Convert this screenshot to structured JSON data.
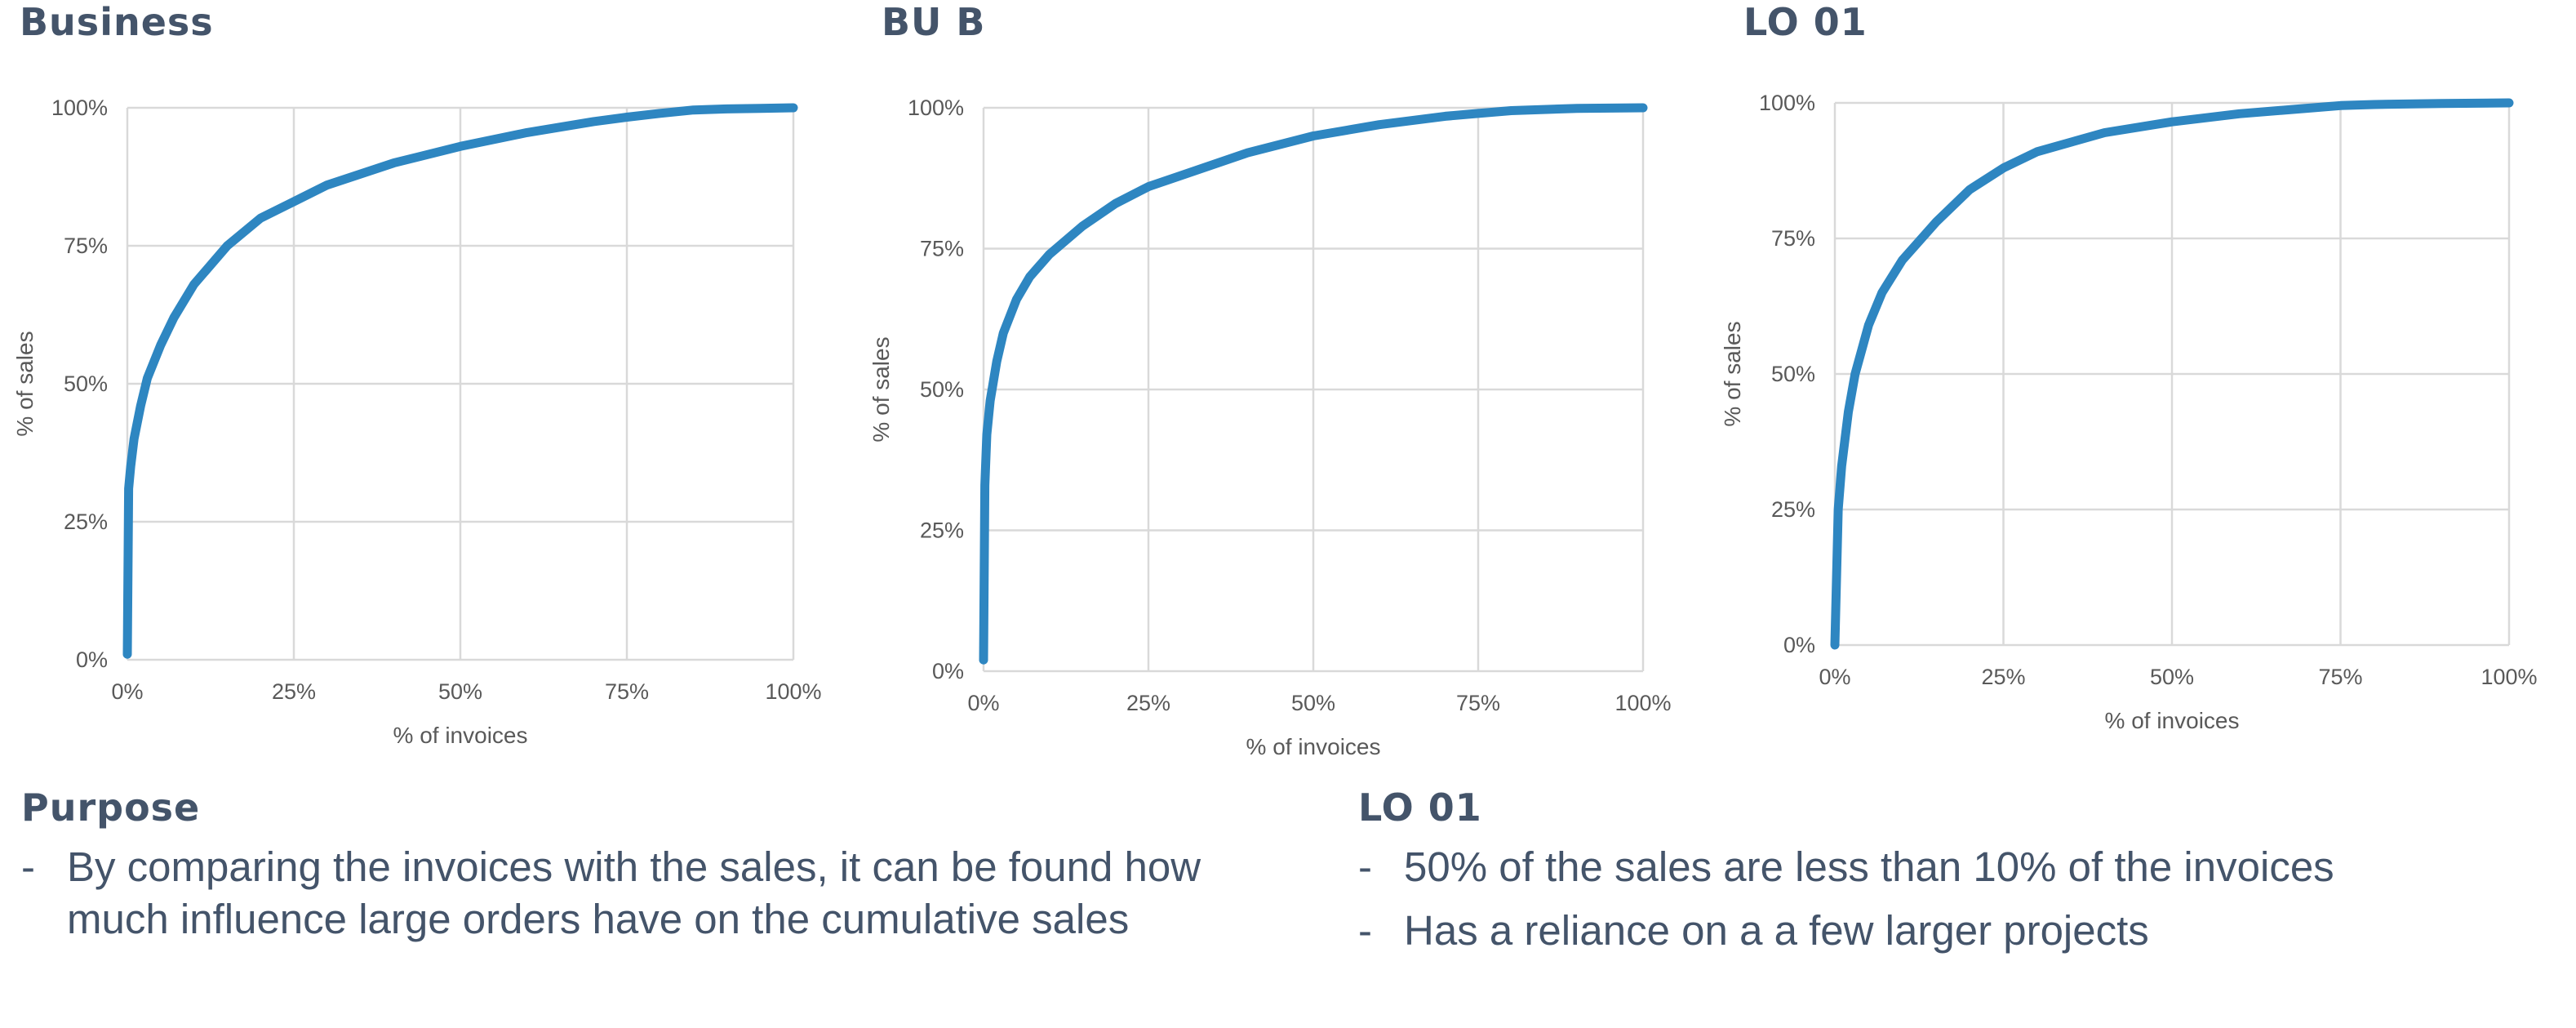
{
  "chart_data": [
    {
      "type": "line",
      "title": "Business",
      "xlabel": "% of invoices",
      "ylabel": "% of sales",
      "xlim": [
        0,
        100
      ],
      "ylim": [
        0,
        100
      ],
      "x_ticks": [
        "0%",
        "25%",
        "50%",
        "75%",
        "100%"
      ],
      "y_ticks": [
        "0%",
        "25%",
        "50%",
        "75%",
        "100%"
      ],
      "grid": true,
      "color": "#2e86c1",
      "series": [
        {
          "x": [
            0,
            0.2,
            0.5,
            1,
            2,
            3,
            5,
            7,
            10,
            15,
            20,
            25,
            30,
            40,
            50,
            60,
            70,
            75,
            80,
            85,
            90,
            95,
            100
          ],
          "y": [
            1,
            31,
            35,
            40,
            46,
            51,
            57,
            62,
            68,
            75,
            80,
            83,
            86,
            90,
            93,
            95.5,
            97.5,
            98.3,
            99,
            99.6,
            99.8,
            99.9,
            100
          ]
        }
      ]
    },
    {
      "type": "line",
      "title": "BU B",
      "xlabel": "% of invoices",
      "ylabel": "% of sales",
      "xlim": [
        0,
        100
      ],
      "ylim": [
        0,
        100
      ],
      "x_ticks": [
        "0%",
        "25%",
        "50%",
        "75%",
        "100%"
      ],
      "y_ticks": [
        "0%",
        "25%",
        "50%",
        "75%",
        "100%"
      ],
      "grid": true,
      "color": "#2e86c1",
      "series": [
        {
          "x": [
            0,
            0.2,
            0.5,
            1,
            2,
            3,
            5,
            7,
            10,
            15,
            20,
            25,
            30,
            40,
            50,
            60,
            70,
            75,
            80,
            90,
            100
          ],
          "y": [
            2,
            33,
            42,
            48,
            55,
            60,
            66,
            70,
            74,
            79,
            83,
            86,
            88,
            92,
            95,
            97,
            98.5,
            99,
            99.5,
            99.9,
            100
          ]
        }
      ]
    },
    {
      "type": "line",
      "title": "LO 01",
      "xlabel": "% of invoices",
      "ylabel": "% of sales",
      "xlim": [
        0,
        100
      ],
      "ylim": [
        0,
        100
      ],
      "x_ticks": [
        "0%",
        "25%",
        "50%",
        "75%",
        "100%"
      ],
      "y_ticks": [
        "0%",
        "25%",
        "50%",
        "75%",
        "100%"
      ],
      "grid": true,
      "color": "#2e86c1",
      "series": [
        {
          "x": [
            0,
            0.5,
            1,
            2,
            3,
            5,
            7,
            10,
            15,
            20,
            25,
            30,
            40,
            50,
            60,
            70,
            75,
            80,
            90,
            100
          ],
          "y": [
            0,
            25,
            33,
            43,
            50,
            59,
            65,
            71,
            78,
            84,
            88,
            91,
            94.5,
            96.5,
            98,
            99,
            99.5,
            99.7,
            99.9,
            100
          ]
        }
      ]
    }
  ],
  "purpose": {
    "heading": "Purpose",
    "bullets": [
      "By comparing the invoices with the sales, it can be found how much influence large orders have on the cumulative sales"
    ]
  },
  "lo01": {
    "heading": "LO 01",
    "bullets": [
      "50% of the sales are less than 10% of the invoices",
      "Has a reliance on a a few larger projects"
    ]
  },
  "bullet_marker": "-"
}
